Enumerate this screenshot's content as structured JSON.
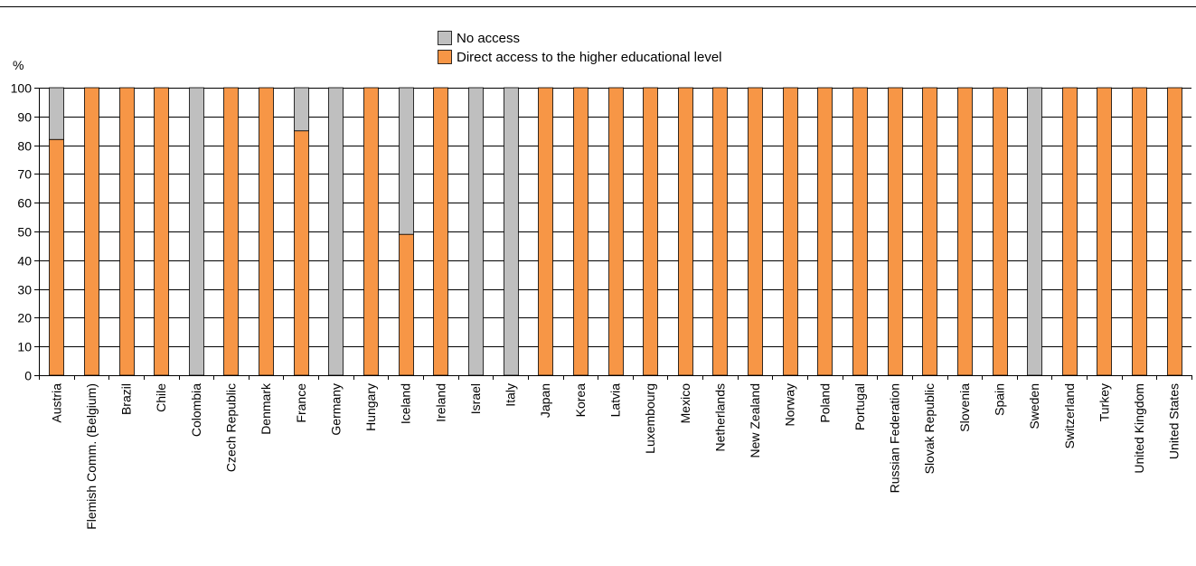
{
  "chart_data": {
    "type": "bar",
    "stacked": true,
    "ylabel": "%",
    "ylim": [
      0,
      100
    ],
    "yticks": [
      0,
      10,
      20,
      30,
      40,
      50,
      60,
      70,
      80,
      90,
      100
    ],
    "grid": true,
    "legend_position": "top-center",
    "categories": [
      "Austria",
      "Flemish Comm. (Belgium)",
      "Brazil",
      "Chile",
      "Colombia",
      "Czech Republic",
      "Denmark",
      "France",
      "Germany",
      "Hungary",
      "Iceland",
      "Ireland",
      "Israel",
      "Italy",
      "Japan",
      "Korea",
      "Latvia",
      "Luxembourg",
      "Mexico",
      "Netherlands",
      "New Zealand",
      "Norway",
      "Poland",
      "Portugal",
      "Russian Federation",
      "Slovak Republic",
      "Slovenia",
      "Spain",
      "Sweden",
      "Switzerland",
      "Turkey",
      "United Kingdom",
      "United States"
    ],
    "series": [
      {
        "name": "Direct access to the higher educational level",
        "color": "#F79646",
        "values": [
          82,
          100,
          100,
          100,
          0,
          100,
          100,
          85,
          0,
          100,
          49,
          100,
          0,
          0,
          100,
          100,
          100,
          100,
          100,
          100,
          100,
          100,
          100,
          100,
          100,
          100,
          100,
          100,
          0,
          100,
          100,
          100,
          100
        ]
      },
      {
        "name": "No access",
        "color": "#BFBFBF",
        "values": [
          18,
          0,
          0,
          0,
          100,
          0,
          0,
          15,
          100,
          0,
          51,
          0,
          100,
          100,
          0,
          0,
          0,
          0,
          0,
          0,
          0,
          0,
          0,
          0,
          0,
          0,
          0,
          0,
          100,
          0,
          0,
          0,
          0
        ]
      }
    ],
    "legend_order": [
      1,
      0
    ]
  }
}
